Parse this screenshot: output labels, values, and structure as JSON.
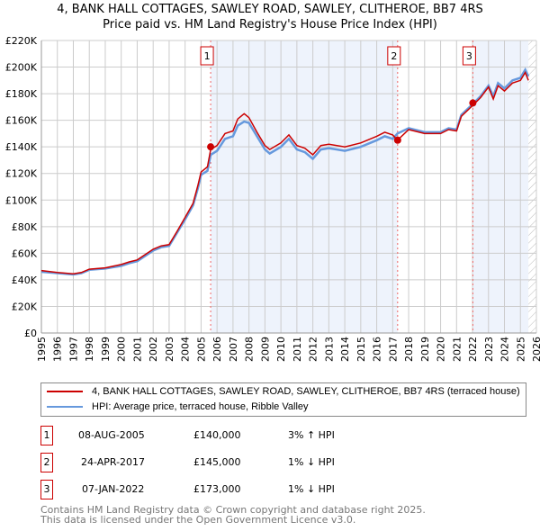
{
  "title_line1": "4, BANK HALL COTTAGES, SAWLEY ROAD, SAWLEY, CLITHEROE, BB7 4RS",
  "title_line2": "Price paid vs. HM Land Registry's House Price Index (HPI)",
  "colors": {
    "property": "#cc0000",
    "hpi": "#6699dd",
    "shade": "#eef3fc"
  },
  "chart_data": {
    "type": "line",
    "xlim": [
      1995,
      2026
    ],
    "ylim": [
      0,
      220000
    ],
    "yticks": [
      0,
      20000,
      40000,
      60000,
      80000,
      100000,
      120000,
      140000,
      160000,
      180000,
      200000,
      220000
    ],
    "ytick_labels": [
      "£0",
      "£20K",
      "£40K",
      "£60K",
      "£80K",
      "£100K",
      "£120K",
      "£140K",
      "£160K",
      "£180K",
      "£200K",
      "£220K"
    ],
    "xticks": [
      1995,
      1996,
      1997,
      1998,
      1999,
      2000,
      2001,
      2002,
      2003,
      2004,
      2005,
      2006,
      2007,
      2008,
      2009,
      2010,
      2011,
      2012,
      2013,
      2014,
      2015,
      2016,
      2017,
      2018,
      2019,
      2020,
      2021,
      2022,
      2023,
      2024,
      2025,
      2026
    ],
    "grid": true,
    "series": [
      {
        "name": "HPI: Average price, terraced house, Ribble Valley",
        "color": "#6699dd",
        "x": [
          1995,
          1996,
          1997,
          1997.5,
          1998,
          1999,
          2000,
          2000.5,
          2001,
          2002,
          2002.5,
          2003,
          2003.5,
          2004,
          2004.5,
          2004.8,
          2005,
          2005.4,
          2005.6,
          2006,
          2006.5,
          2007,
          2007.3,
          2007.7,
          2008,
          2008.5,
          2009,
          2009.3,
          2010,
          2010.5,
          2011,
          2011.5,
          2012,
          2012.5,
          2013,
          2014,
          2015,
          2016,
          2016.5,
          2017,
          2017.3,
          2018,
          2019,
          2020,
          2020.5,
          2021,
          2021.3,
          2022,
          2022.5,
          2023,
          2023.3,
          2023.6,
          2024,
          2024.5,
          2025,
          2025.3,
          2025.5
        ],
        "y": [
          46000,
          45000,
          44000,
          45000,
          47500,
          48500,
          50500,
          52500,
          54000,
          62000,
          64500,
          65500,
          75500,
          85500,
          96000,
          109000,
          119000,
          122000,
          134000,
          137000,
          146000,
          148000,
          156000,
          159000,
          158000,
          148000,
          138000,
          135000,
          140000,
          146000,
          138000,
          136000,
          131000,
          138000,
          139000,
          137000,
          140000,
          145000,
          148000,
          146000,
          150000,
          154000,
          151000,
          151000,
          154000,
          153000,
          164000,
          172000,
          178000,
          186000,
          178000,
          188000,
          184000,
          190000,
          192000,
          198000,
          193000
        ]
      },
      {
        "name": "4, BANK HALL COTTAGES, SAWLEY ROAD, SAWLEY, CLITHEROE, BB7 4RS (terraced house)",
        "color": "#cc0000",
        "x": [
          1995,
          1996,
          1997,
          1997.5,
          1998,
          1999,
          2000,
          2000.5,
          2001,
          2002,
          2002.5,
          2003,
          2003.5,
          2004,
          2004.5,
          2004.8,
          2005,
          2005.4,
          2005.6,
          2006,
          2006.5,
          2007,
          2007.3,
          2007.7,
          2008,
          2008.5,
          2009,
          2009.3,
          2010,
          2010.5,
          2011,
          2011.5,
          2012,
          2012.5,
          2013,
          2014,
          2015,
          2016,
          2016.5,
          2017,
          2017.3,
          2018,
          2019,
          2020,
          2020.5,
          2021,
          2021.3,
          2022,
          2022.5,
          2023,
          2023.3,
          2023.6,
          2024,
          2024.5,
          2025,
          2025.3,
          2025.5
        ],
        "y": [
          47000,
          45500,
          44500,
          45500,
          48000,
          49000,
          51500,
          53500,
          55000,
          63000,
          65500,
          66500,
          76500,
          87000,
          97500,
          111000,
          121000,
          125000,
          138000,
          141000,
          150000,
          152000,
          161000,
          165000,
          162000,
          151000,
          141000,
          138000,
          143000,
          149000,
          141000,
          139000,
          134000,
          141000,
          142000,
          140000,
          143000,
          148000,
          151000,
          149000,
          145000,
          153000,
          150000,
          150000,
          153000,
          152000,
          163000,
          171000,
          177000,
          185000,
          176000,
          186000,
          182000,
          188000,
          190000,
          196000,
          190000
        ]
      }
    ],
    "sales": [
      {
        "label": "1",
        "x": 2005.6,
        "y": 140000
      },
      {
        "label": "2",
        "x": 2017.31,
        "y": 145000
      },
      {
        "label": "3",
        "x": 2022.02,
        "y": 173000
      }
    ],
    "hatch_from": 2025.5
  },
  "legend": {
    "property": "4, BANK HALL COTTAGES, SAWLEY ROAD, SAWLEY, CLITHEROE, BB7 4RS (terraced house)",
    "hpi": "HPI: Average price, terraced house, Ribble Valley"
  },
  "transactions": [
    {
      "num": "1",
      "date": "08-AUG-2005",
      "price": "£140,000",
      "hpi": "3% ↑ HPI"
    },
    {
      "num": "2",
      "date": "24-APR-2017",
      "price": "£145,000",
      "hpi": "1% ↓ HPI"
    },
    {
      "num": "3",
      "date": "07-JAN-2022",
      "price": "£173,000",
      "hpi": "1% ↓ HPI"
    }
  ],
  "footer_line1": "Contains HM Land Registry data © Crown copyright and database right 2025.",
  "footer_line2": "This data is licensed under the Open Government Licence v3.0."
}
